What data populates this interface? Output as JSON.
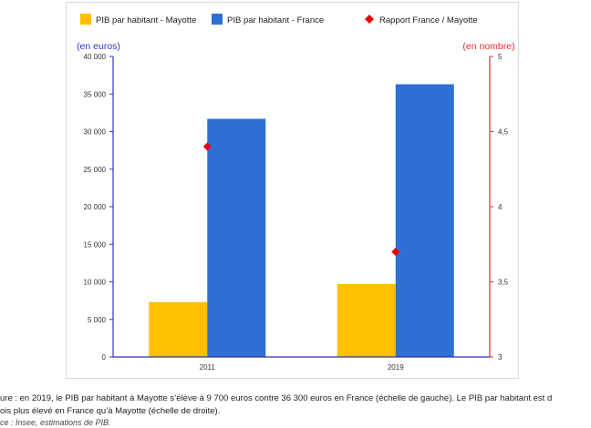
{
  "chart_data": {
    "type": "bar",
    "categories": [
      "2011",
      "2019"
    ],
    "series": [
      {
        "name": "PIB par habitant - Mayotte",
        "axis": "left",
        "kind": "bar",
        "color": "#ffc000",
        "values": [
          7300,
          9700
        ]
      },
      {
        "name": "PIB par habitant - France",
        "axis": "left",
        "kind": "bar",
        "color": "#2e6fd6",
        "values": [
          31700,
          36300
        ]
      },
      {
        "name": "Rapport France / Mayotte",
        "axis": "right",
        "kind": "point",
        "marker": "diamond",
        "color": "#ee0000",
        "values": [
          4.4,
          3.7
        ]
      }
    ],
    "left_axis": {
      "label": "(en euros)",
      "min": 0,
      "max": 40000,
      "ticks": [
        "0",
        "5 000",
        "10 000",
        "15 000",
        "20 000",
        "25 000",
        "30 000",
        "35 000",
        "40 000"
      ],
      "color": "#3333cc"
    },
    "right_axis": {
      "label": "(en nombre)",
      "min": 3,
      "max": 5,
      "ticks": [
        "3",
        "3,5",
        "4",
        "4,5",
        "5"
      ],
      "color": "#e03030"
    },
    "legend": {
      "position": "top"
    },
    "grid": false
  },
  "caption": {
    "line1": "ure : en 2019, le PIB par habitant à Mayotte s’élève à 9 700 euros contre 36 300 euros en France (échelle de gauche). Le PIB par habitant est d",
    "line2": "ois plus élevé en France qu’à Mayotte (échelle de droite).",
    "source": "ce : Insee, estimations de PIB."
  }
}
